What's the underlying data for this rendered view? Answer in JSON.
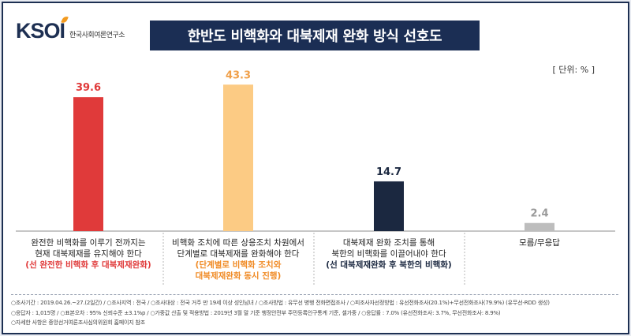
{
  "logo": {
    "mark": "KSOI",
    "subtitle": "한국사회여론연구소"
  },
  "title": "한반도 비핵화와 대북제재 완화 방식 선호도",
  "unit": "[ 단위: % ]",
  "colors": {
    "navy": "#1b2e54",
    "red": "#e03a3a",
    "peach": "#fccb84",
    "dark": "#1b2840",
    "gray": "#bdbdbd",
    "orange": "#f08a24"
  },
  "chart_data": {
    "type": "bar",
    "categories": [
      "완전한 비핵화를 이루기 전까지는 현재 대북제재를 유지해야 한다",
      "비핵화 조치에 따른 상응조치 차원에서 단계별로 대북제재를 완화해야 한다",
      "대북제재 완화 조치를 통해 북한의 비핵화를 이끌어내야 한다",
      "모름/무응답"
    ],
    "values": [
      39.6,
      43.3,
      14.7,
      2.4
    ],
    "value_labels": [
      "39.6",
      "43.3",
      "14.7",
      "2.4"
    ],
    "bar_colors": [
      "#e03a3a",
      "#fccb84",
      "#1b2840",
      "#bdbdbd"
    ],
    "label_colors": [
      "#e03a3a",
      "#f0a04a",
      "#1b2840",
      "#9a9a9a"
    ],
    "ylim": [
      0,
      45
    ],
    "grid": false
  },
  "labels": [
    {
      "lines": [
        "완전한 비핵화를 이루기 전까지는",
        "현재 대북제재를 유지해야 한다"
      ],
      "note": [
        "(선 완전한 비핵화 후 대북제재완화)"
      ],
      "note_color": "#e03a3a"
    },
    {
      "lines": [
        "비핵화 조치에 따른 상응조치 차원에서",
        "단계별로 대북제재를 완화해야 한다"
      ],
      "note": [
        "(단계별로 비핵화 조치와",
        "대북제재완화 동시 진행)"
      ],
      "note_color": "#f08a24"
    },
    {
      "lines": [
        "대북제재 완화 조치를 통해",
        "북한의 비핵화를 이끌어내야 한다"
      ],
      "note": [
        "(선 대북제재완화 후 북한의 비핵화)"
      ],
      "note_color": "#1b2840"
    },
    {
      "lines": [
        "모름/무응답"
      ],
      "note": [],
      "note_color": "#333"
    }
  ],
  "footer": {
    "line1": "○조사기간 : 2019.04.26.~27.(2일간) / ○조사지역 : 전국 / ○조사대상 : 전국 거주 만 19세 이상 성인남녀 / ○조사방법 : 유무선 병행 전화면접조사 / ○피조사자선정방법 : 유선전화조사(20.1%)+무선전화조사(79.9%) (유무선-RDD 생성)",
    "line2": "○응답자 : 1,015명 / ○표본오차 : 95% 신뢰수준 ±3.1%p / ○가중값 산출 및 적용방법 : 2019년 3월 말 기준 행정안전부 주민등록인구통계 기준, 셀가중 / ○응답률 : 7.0% (유선전화조사: 3.7%, 무선전화조사: 8.9%)",
    "line3": "○자세한 사항은 중앙선거여론조사심의위원회 홈페이지 참조"
  }
}
